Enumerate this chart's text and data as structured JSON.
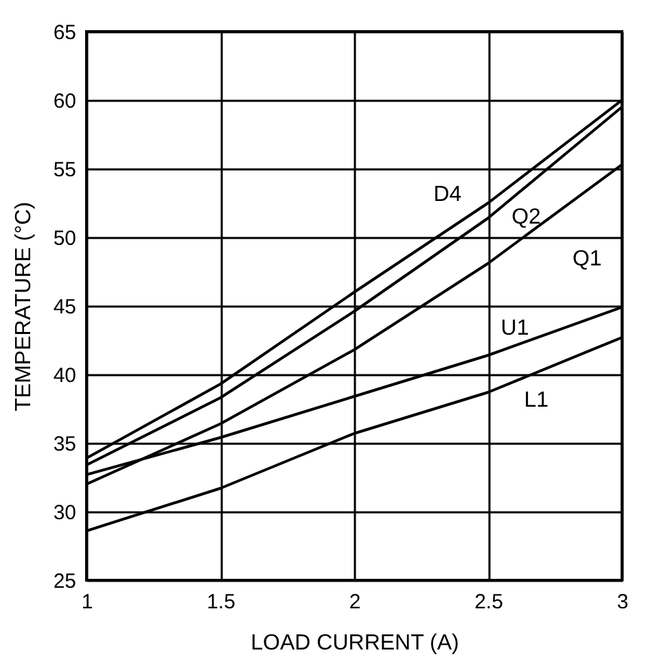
{
  "chart_data": {
    "type": "line",
    "xlabel": "LOAD CURRENT (A)",
    "ylabel": "TEMPERATURE (°C)",
    "x": [
      1,
      1.5,
      2,
      2.5,
      3
    ],
    "series": [
      {
        "name": "D4",
        "color": "#000000",
        "values": [
          33.9,
          39.3,
          46.0,
          52.5,
          60.0
        ]
      },
      {
        "name": "Q2",
        "color": "#000000",
        "values": [
          33.4,
          38.3,
          44.6,
          51.4,
          59.5
        ]
      },
      {
        "name": "Q1",
        "color": "#000000",
        "values": [
          32.0,
          36.4,
          41.8,
          48.1,
          55.3
        ]
      },
      {
        "name": "U1",
        "color": "#000000",
        "values": [
          32.7,
          35.4,
          38.4,
          41.4,
          44.9
        ]
      },
      {
        "name": "L1",
        "color": "#000000",
        "values": [
          28.6,
          31.7,
          35.7,
          38.7,
          42.7
        ]
      }
    ],
    "xlim": [
      1,
      3
    ],
    "xticks": [
      1,
      1.5,
      2,
      2.5,
      3
    ],
    "ylim": [
      25,
      65
    ],
    "yticks": [
      25,
      30,
      35,
      40,
      45,
      50,
      55,
      60,
      65
    ],
    "grid": true,
    "marker": "none",
    "line_style": "solid"
  }
}
